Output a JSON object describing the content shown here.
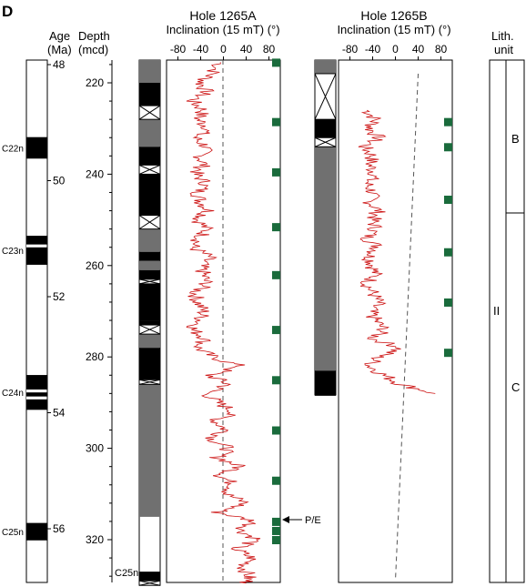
{
  "panel_label": "D",
  "headers": {
    "age": "Age",
    "age_unit": "(Ma)",
    "depth": "Depth",
    "depth_unit": "(mcd)",
    "lith": "Lith.",
    "lith_unit": "unit"
  },
  "colors": {
    "curve": "#cc1111",
    "marker": "#1a6b3c",
    "core_recovered": "#000000",
    "core_gray": "#707070"
  },
  "age_axis": {
    "ticks": [
      "48",
      "50",
      "52",
      "54",
      "56"
    ],
    "chrons": [
      {
        "label": "C22n",
        "top": 49.25,
        "bottom": 49.62
      },
      {
        "label": "C23n",
        "top": 50.95,
        "bottom": 51.45
      },
      {
        "label": "C24n",
        "top": 53.35,
        "bottom": 53.95
      },
      {
        "label": "C25n",
        "top": 55.9,
        "bottom": 56.2
      }
    ]
  },
  "depth_axis": {
    "ticks": [
      "220",
      "240",
      "260",
      "280",
      "300",
      "320"
    ],
    "range": [
      215,
      330
    ]
  },
  "holeA": {
    "title": "Hole 1265A",
    "xlabel": "Inclination (15 mT) (°)",
    "xticks": [
      "-80",
      "-40",
      "0",
      "40",
      "80"
    ],
    "xlim": [
      -100,
      100
    ],
    "core_bottom_label": "C25n",
    "pe_label": "P/E",
    "pe_depth": 315.5
  },
  "holeB": {
    "title": "Hole 1265B",
    "xlabel": "Inclination (15 mT) (°)",
    "xticks": [
      "-80",
      "-40",
      "0",
      "40",
      "80"
    ],
    "xlim": [
      -100,
      100
    ]
  },
  "lith": {
    "unit_II": "II",
    "unit_B": "B",
    "unit_C": "C"
  },
  "chart_data": {
    "type": "line",
    "series": [
      {
        "hole": "1265A",
        "depth": [
          215.5,
          218,
          220,
          222,
          224,
          226,
          228,
          230,
          232,
          234,
          236,
          238,
          240,
          242,
          244,
          246,
          248,
          250,
          252,
          254,
          256,
          258,
          260,
          262,
          264,
          266,
          268,
          270,
          272,
          274,
          276,
          278,
          280,
          282,
          284,
          286,
          288,
          290,
          292,
          294,
          296,
          298,
          300,
          302,
          304,
          306,
          308,
          310,
          312,
          314,
          316,
          318,
          320,
          322,
          324,
          326,
          328,
          329.5
        ],
        "inclination": [
          -5,
          -20,
          -40,
          -30,
          -55,
          -35,
          -45,
          -25,
          -50,
          -30,
          -40,
          -35,
          -50,
          -30,
          -45,
          -40,
          -25,
          -45,
          -30,
          -40,
          -55,
          -25,
          -40,
          -35,
          -30,
          -50,
          -45,
          -35,
          -40,
          -55,
          -30,
          -45,
          -20,
          30,
          -25,
          10,
          -30,
          -10,
          20,
          -15,
          5,
          -20,
          10,
          -10,
          30,
          -5,
          20,
          5,
          40,
          -10,
          55,
          30,
          60,
          20,
          50,
          35,
          45,
          40
        ]
      },
      {
        "hole": "1265B",
        "depth": [
          226,
          228,
          230,
          232,
          234,
          236,
          238,
          240,
          242,
          244,
          246,
          248,
          250,
          252,
          254,
          256,
          258,
          260,
          262,
          264,
          266,
          268,
          270,
          272,
          274,
          276,
          278,
          280,
          282,
          284,
          286,
          288
        ],
        "inclination": [
          -50,
          -35,
          -45,
          -30,
          -55,
          -40,
          -45,
          -35,
          -50,
          -40,
          -45,
          -30,
          -40,
          -35,
          -50,
          -30,
          -45,
          -40,
          -35,
          -50,
          -40,
          -30,
          -45,
          -35,
          -20,
          -40,
          10,
          -30,
          -45,
          -20,
          10,
          70
        ]
      }
    ],
    "marker_depths_A": [
      215.5,
      228.5,
      239.5,
      251.5,
      262,
      274,
      285,
      296,
      307,
      316,
      318,
      320
    ],
    "marker_depths_B": [
      228.5,
      234,
      245.5,
      257,
      268,
      279
    ]
  }
}
